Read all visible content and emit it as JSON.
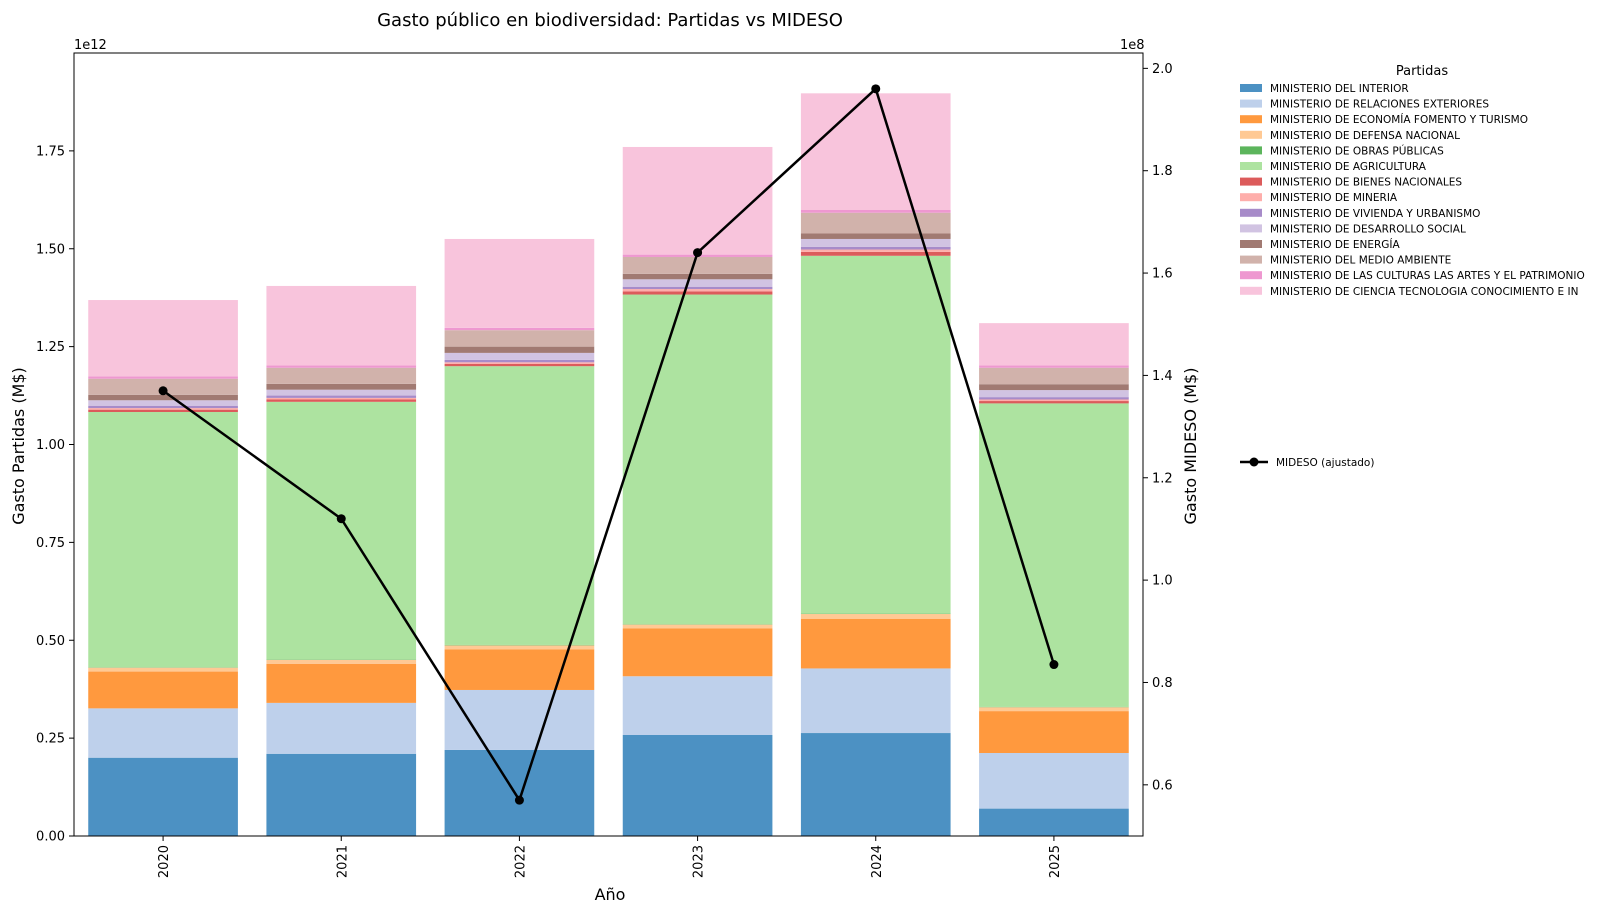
{
  "chart_data": {
    "type": "bar",
    "subtype": "stacked-bar-with-line-secondary-axis",
    "title": "Gasto público en biodiversidad: Partidas vs MIDESO",
    "xlabel": "Año",
    "ylabel": "Gasto Partidas (M$)",
    "y2label": "Gasto MIDESO (M$)",
    "y_offset_text": "1e12",
    "y2_offset_text": "1e8",
    "ylim": [
      0,
      2.0
    ],
    "y2lim": [
      0.5,
      2.03
    ],
    "yticks": [
      "0.00",
      "0.25",
      "0.50",
      "0.75",
      "1.00",
      "1.25",
      "1.50",
      "1.75"
    ],
    "y2ticks": [
      "0.6",
      "0.8",
      "1.0",
      "1.2",
      "1.4",
      "1.6",
      "1.8",
      "2.0"
    ],
    "categories": [
      "2020",
      "2021",
      "2022",
      "2023",
      "2024",
      "2025"
    ],
    "legend_title": "Partidas",
    "series": [
      {
        "name": "MINISTERIO DEL INTERIOR",
        "color": "#4c91c3",
        "values": [
          0.2,
          0.21,
          0.22,
          0.258,
          0.263,
          0.07
        ]
      },
      {
        "name": "MINISTERIO DE RELACIONES EXTERIORES",
        "color": "#bed0eb",
        "values": [
          0.126,
          0.13,
          0.153,
          0.15,
          0.165,
          0.142
        ]
      },
      {
        "name": "MINISTERIO DE ECONOMÍA FOMENTO Y TURISMO",
        "color": "#ff993e",
        "values": [
          0.094,
          0.1,
          0.104,
          0.122,
          0.127,
          0.107
        ]
      },
      {
        "name": "MINISTERIO DE DEFENSA NACIONAL",
        "color": "#ffc994",
        "values": [
          0.01,
          0.01,
          0.01,
          0.01,
          0.012,
          0.01
        ]
      },
      {
        "name": "MINISTERIO DE OBRAS PÚBLICAS",
        "color": "#5cb55c",
        "values": [
          0.001,
          0.001,
          0.001,
          0.001,
          0.001,
          0.001
        ]
      },
      {
        "name": "MINISTERIO DE AGRICULTURA",
        "color": "#ade3a0",
        "values": [
          0.652,
          0.658,
          0.712,
          0.842,
          0.914,
          0.775
        ]
      },
      {
        "name": "MINISTERIO DE BIENES NACIONALES",
        "color": "#dc5b5b",
        "values": [
          0.006,
          0.006,
          0.006,
          0.008,
          0.01,
          0.006
        ]
      },
      {
        "name": "MINISTERIO DE MINERIA",
        "color": "#feaeab",
        "values": [
          0.004,
          0.004,
          0.004,
          0.006,
          0.006,
          0.004
        ]
      },
      {
        "name": "MINISTERIO DE VIVIENDA Y URBANISMO",
        "color": "#a78bc9",
        "values": [
          0.006,
          0.006,
          0.006,
          0.006,
          0.007,
          0.006
        ]
      },
      {
        "name": "MINISTERIO DE DESARROLLO SOCIAL",
        "color": "#d1c3e2",
        "values": [
          0.014,
          0.015,
          0.018,
          0.019,
          0.02,
          0.018
        ]
      },
      {
        "name": "MINISTERIO DE ENERGÍA",
        "color": "#a17a72",
        "values": [
          0.014,
          0.015,
          0.016,
          0.014,
          0.014,
          0.015
        ]
      },
      {
        "name": "MINISTERIO DEL MEDIO AMBIENTE",
        "color": "#d1b2ab",
        "values": [
          0.041,
          0.041,
          0.042,
          0.043,
          0.053,
          0.042
        ]
      },
      {
        "name": "MINISTERIO DE LAS CULTURAS LAS ARTES Y EL PATRIMONIO",
        "color": "#ee98d0",
        "values": [
          0.006,
          0.006,
          0.006,
          0.006,
          0.007,
          0.006
        ]
      },
      {
        "name": "MINISTERIO DE CIENCIA TECNOLOGIA CONOCIMIENTO E IN",
        "color": "#f8c4dc",
        "values": [
          0.195,
          0.203,
          0.227,
          0.275,
          0.298,
          0.108
        ]
      }
    ],
    "line_series": {
      "name": "MIDESO (ajustado)",
      "color": "#000000",
      "axis": "right",
      "values": [
        1.37,
        1.12,
        0.57,
        1.64,
        1.96,
        0.835
      ]
    }
  }
}
